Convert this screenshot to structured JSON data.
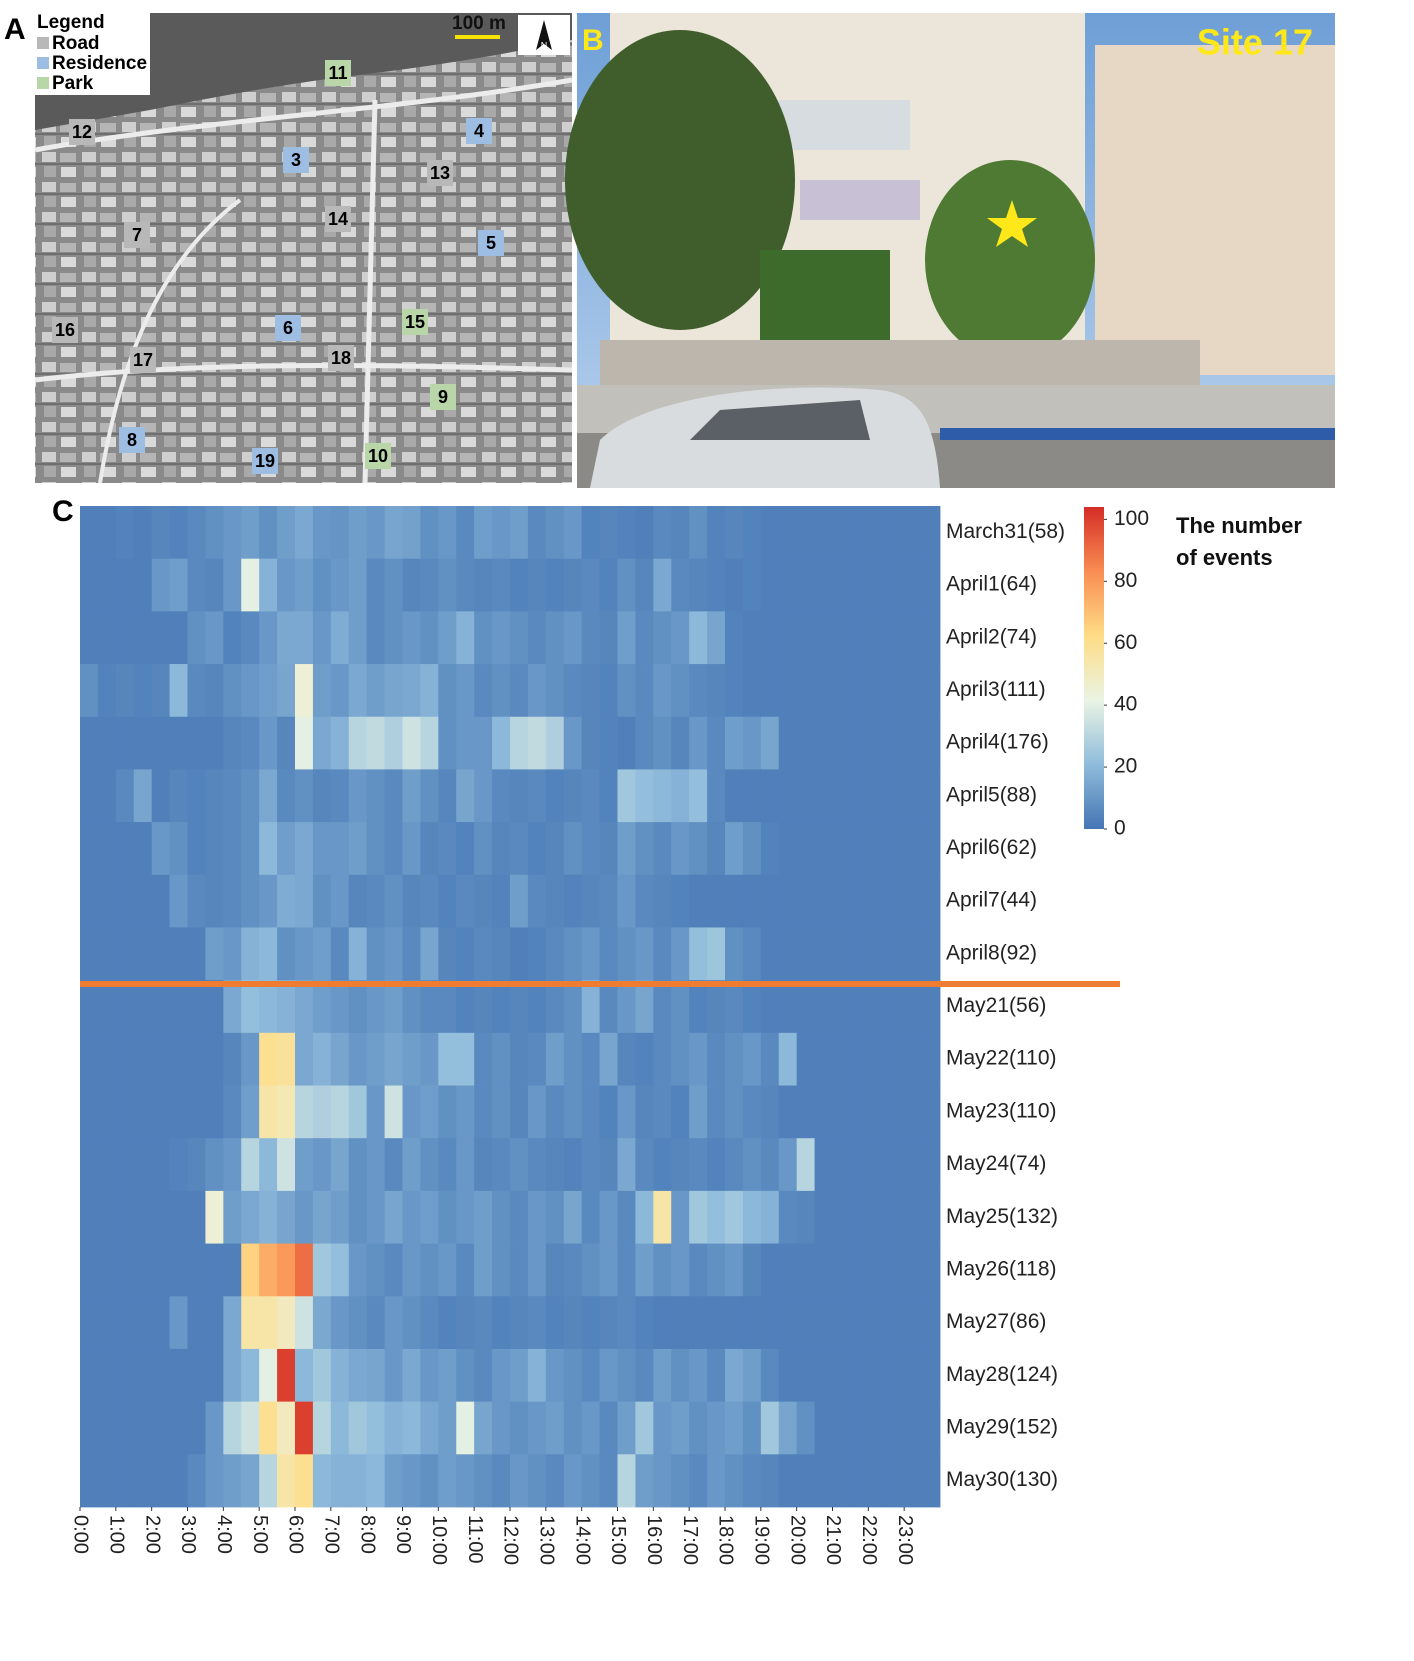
{
  "panel_a": {
    "label": "A",
    "legend_title": "Legend",
    "legend": [
      {
        "name": "Road",
        "color": "#b8b8b8"
      },
      {
        "name": "Residence",
        "color": "#9dbde3"
      },
      {
        "name": "Park",
        "color": "#b9d6a8"
      }
    ],
    "scale": "100 m",
    "north": "N",
    "sites": [
      {
        "label": "11",
        "type": 2
      },
      {
        "label": "12",
        "type": 0
      },
      {
        "label": "4",
        "type": 1
      },
      {
        "label": "3",
        "type": 1
      },
      {
        "label": "13",
        "type": 0
      },
      {
        "label": "14",
        "type": 0
      },
      {
        "label": "7",
        "type": 0
      },
      {
        "label": "5",
        "type": 1
      },
      {
        "label": "15",
        "type": 2
      },
      {
        "label": "16",
        "type": 0
      },
      {
        "label": "6",
        "type": 1
      },
      {
        "label": "17",
        "type": 0
      },
      {
        "label": "18",
        "type": 0
      },
      {
        "label": "9",
        "type": 2
      },
      {
        "label": "8",
        "type": 1
      },
      {
        "label": "10",
        "type": 2
      },
      {
        "label": "19",
        "type": 1
      }
    ]
  },
  "panel_b": {
    "label": "B",
    "site": "Site 17"
  },
  "chart_data": {
    "type": "heatmap",
    "label": "C",
    "colorbar_title": "The number of events",
    "categories": [
      "March31(58)",
      "April1(64)",
      "April2(74)",
      "April3(111)",
      "April4(176)",
      "April5(88)",
      "April6(62)",
      "April7(44)",
      "April8(92)",
      "May21(56)",
      "May22(110)",
      "May23(110)",
      "May24(74)",
      "May25(132)",
      "May26(118)",
      "May27(86)",
      "May28(124)",
      "May29(152)",
      "May30(130)"
    ],
    "bins": [
      0,
      0.5,
      1,
      1.5,
      2,
      2.5,
      3,
      3.5,
      4,
      4.5,
      5,
      5.5,
      6,
      6.5,
      7,
      7.5,
      8,
      8.5,
      9,
      9.5,
      10,
      10.5,
      11,
      11.5,
      12,
      12.5,
      13,
      13.5,
      14,
      14.5,
      15,
      15.5,
      16,
      16.5,
      17,
      17.5,
      18,
      18.5,
      19,
      19.5,
      20,
      20.5,
      21,
      21.5,
      22,
      22.5,
      23,
      23.5,
      24
    ],
    "values": [
      [
        3,
        3,
        4,
        3,
        5,
        4,
        6,
        8,
        10,
        12,
        8,
        12,
        15,
        10,
        9,
        12,
        10,
        14,
        13,
        8,
        10,
        6,
        12,
        10,
        12,
        6,
        8,
        10,
        4,
        5,
        4,
        3,
        6,
        5,
        8,
        4,
        5,
        4,
        3,
        3,
        3,
        3,
        3,
        3,
        3,
        3,
        3,
        3
      ],
      [
        3,
        3,
        3,
        3,
        10,
        12,
        6,
        5,
        10,
        40,
        18,
        10,
        12,
        8,
        10,
        12,
        6,
        8,
        5,
        6,
        8,
        6,
        5,
        6,
        4,
        5,
        4,
        5,
        6,
        4,
        8,
        5,
        15,
        6,
        5,
        4,
        3,
        4,
        3,
        3,
        3,
        3,
        3,
        3,
        3,
        3,
        3,
        3
      ],
      [
        3,
        3,
        3,
        3,
        3,
        3,
        8,
        10,
        4,
        6,
        10,
        15,
        15,
        10,
        16,
        12,
        6,
        8,
        10,
        8,
        12,
        18,
        8,
        10,
        8,
        6,
        8,
        10,
        6,
        5,
        12,
        6,
        8,
        10,
        20,
        14,
        4,
        3,
        3,
        3,
        3,
        3,
        3,
        3,
        3,
        3,
        3,
        3
      ],
      [
        8,
        4,
        5,
        4,
        5,
        20,
        6,
        5,
        8,
        10,
        12,
        14,
        45,
        12,
        10,
        15,
        12,
        14,
        15,
        18,
        8,
        10,
        6,
        8,
        6,
        10,
        8,
        6,
        5,
        4,
        8,
        6,
        10,
        8,
        6,
        5,
        4,
        3,
        3,
        3,
        3,
        3,
        3,
        3,
        3,
        3,
        3,
        3
      ],
      [
        3,
        3,
        3,
        3,
        3,
        3,
        3,
        3,
        5,
        6,
        10,
        5,
        40,
        15,
        18,
        30,
        32,
        28,
        35,
        30,
        8,
        10,
        10,
        20,
        30,
        32,
        28,
        10,
        5,
        4,
        3,
        6,
        8,
        5,
        10,
        6,
        12,
        10,
        14,
        3,
        3,
        3,
        3,
        3,
        3,
        3,
        3,
        3
      ],
      [
        3,
        3,
        6,
        14,
        3,
        5,
        4,
        5,
        6,
        8,
        15,
        6,
        8,
        5,
        6,
        10,
        8,
        6,
        12,
        8,
        5,
        14,
        10,
        6,
        5,
        6,
        4,
        5,
        6,
        4,
        25,
        22,
        20,
        18,
        22,
        6,
        3,
        3,
        3,
        3,
        3,
        3,
        3,
        3,
        3,
        3,
        3,
        3
      ],
      [
        3,
        3,
        3,
        3,
        10,
        8,
        4,
        5,
        6,
        8,
        20,
        12,
        15,
        10,
        10,
        12,
        8,
        6,
        10,
        5,
        6,
        4,
        8,
        5,
        6,
        4,
        5,
        8,
        6,
        5,
        12,
        8,
        6,
        10,
        8,
        5,
        12,
        8,
        4,
        3,
        3,
        3,
        3,
        3,
        3,
        3,
        3,
        3
      ],
      [
        3,
        3,
        3,
        3,
        3,
        10,
        6,
        5,
        6,
        8,
        10,
        16,
        15,
        8,
        10,
        5,
        6,
        8,
        5,
        6,
        4,
        6,
        5,
        4,
        12,
        6,
        5,
        4,
        5,
        6,
        10,
        6,
        5,
        4,
        3,
        3,
        3,
        3,
        3,
        3,
        3,
        3,
        3,
        3,
        3,
        3,
        3,
        3
      ],
      [
        3,
        3,
        3,
        3,
        3,
        3,
        3,
        12,
        10,
        18,
        20,
        8,
        10,
        12,
        6,
        18,
        8,
        10,
        6,
        14,
        5,
        4,
        6,
        5,
        3,
        4,
        6,
        8,
        10,
        6,
        8,
        10,
        6,
        10,
        22,
        24,
        8,
        6,
        3,
        3,
        3,
        3,
        3,
        3,
        3,
        3,
        3,
        3
      ],
      [
        3,
        3,
        3,
        3,
        3,
        3,
        3,
        3,
        15,
        22,
        20,
        18,
        15,
        12,
        10,
        8,
        10,
        12,
        8,
        6,
        6,
        4,
        5,
        4,
        5,
        4,
        6,
        8,
        18,
        6,
        10,
        14,
        6,
        8,
        4,
        5,
        6,
        4,
        3,
        3,
        3,
        3,
        3,
        3,
        3,
        3,
        3,
        3
      ],
      [
        3,
        3,
        3,
        3,
        3,
        3,
        3,
        3,
        5,
        10,
        60,
        58,
        15,
        18,
        14,
        10,
        12,
        14,
        12,
        10,
        22,
        22,
        6,
        8,
        5,
        6,
        12,
        8,
        6,
        14,
        5,
        4,
        6,
        8,
        10,
        6,
        8,
        10,
        6,
        20,
        3,
        3,
        3,
        3,
        3,
        3,
        3,
        3
      ],
      [
        3,
        3,
        3,
        3,
        3,
        3,
        3,
        3,
        6,
        12,
        55,
        52,
        30,
        28,
        30,
        25,
        10,
        35,
        10,
        12,
        8,
        10,
        6,
        8,
        5,
        10,
        6,
        8,
        6,
        4,
        10,
        5,
        6,
        4,
        12,
        6,
        8,
        6,
        5,
        3,
        3,
        3,
        3,
        3,
        3,
        3,
        3,
        3
      ],
      [
        3,
        3,
        3,
        3,
        3,
        4,
        5,
        8,
        10,
        30,
        20,
        35,
        12,
        10,
        14,
        8,
        10,
        6,
        12,
        8,
        6,
        10,
        5,
        6,
        8,
        6,
        5,
        4,
        6,
        5,
        15,
        6,
        4,
        5,
        6,
        4,
        6,
        8,
        6,
        10,
        30,
        3,
        3,
        3,
        3,
        3,
        3,
        3
      ],
      [
        3,
        3,
        3,
        3,
        3,
        3,
        3,
        45,
        12,
        15,
        18,
        14,
        10,
        14,
        12,
        8,
        10,
        14,
        10,
        12,
        8,
        10,
        12,
        8,
        6,
        10,
        8,
        14,
        6,
        10,
        6,
        20,
        55,
        10,
        25,
        22,
        25,
        20,
        18,
        6,
        5,
        3,
        3,
        3,
        3,
        3,
        3,
        3
      ],
      [
        3,
        3,
        3,
        3,
        3,
        3,
        3,
        3,
        3,
        65,
        75,
        80,
        90,
        25,
        22,
        10,
        8,
        6,
        10,
        8,
        10,
        6,
        12,
        8,
        6,
        10,
        5,
        6,
        8,
        10,
        6,
        12,
        8,
        10,
        6,
        8,
        10,
        5,
        3,
        3,
        3,
        3,
        3,
        3,
        3,
        3,
        3,
        3
      ],
      [
        3,
        3,
        3,
        3,
        3,
        10,
        3,
        3,
        15,
        55,
        55,
        50,
        35,
        15,
        10,
        8,
        6,
        10,
        8,
        6,
        4,
        5,
        6,
        4,
        5,
        6,
        4,
        5,
        4,
        5,
        6,
        4,
        3,
        3,
        3,
        3,
        3,
        3,
        3,
        3,
        3,
        3,
        3,
        3,
        3,
        3,
        3,
        3
      ],
      [
        3,
        3,
        3,
        3,
        3,
        3,
        3,
        3,
        15,
        20,
        40,
        100,
        20,
        25,
        18,
        15,
        14,
        10,
        15,
        10,
        12,
        8,
        6,
        10,
        12,
        18,
        10,
        8,
        6,
        10,
        8,
        6,
        12,
        8,
        10,
        6,
        15,
        12,
        6,
        3,
        3,
        3,
        3,
        3,
        3,
        3,
        3,
        3
      ],
      [
        3,
        3,
        3,
        3,
        3,
        3,
        3,
        10,
        30,
        35,
        60,
        50,
        100,
        30,
        20,
        25,
        22,
        18,
        20,
        15,
        12,
        40,
        14,
        10,
        8,
        10,
        12,
        8,
        10,
        6,
        12,
        25,
        10,
        12,
        8,
        10,
        12,
        8,
        25,
        14,
        8,
        3,
        3,
        3,
        3,
        3,
        3,
        3
      ],
      [
        3,
        3,
        3,
        3,
        3,
        3,
        6,
        10,
        12,
        14,
        30,
        55,
        60,
        20,
        18,
        18,
        20,
        12,
        10,
        8,
        12,
        10,
        8,
        6,
        10,
        8,
        6,
        10,
        8,
        6,
        30,
        12,
        10,
        8,
        6,
        10,
        8,
        6,
        5,
        3,
        3,
        3,
        3,
        3,
        3,
        3,
        3,
        3
      ]
    ],
    "xlim": [
      0,
      24
    ],
    "xticks": [
      {
        "value": 0,
        "label": "0:00"
      },
      {
        "value": 1,
        "label": "1:00"
      },
      {
        "value": 2,
        "label": "2:00"
      },
      {
        "value": 3,
        "label": "3:00"
      },
      {
        "value": 4,
        "label": "4:00"
      },
      {
        "value": 5,
        "label": "5:00"
      },
      {
        "value": 6,
        "label": "6:00"
      },
      {
        "value": 7,
        "label": "7:00"
      },
      {
        "value": 8,
        "label": "8:00"
      },
      {
        "value": 9,
        "label": "9:00"
      },
      {
        "value": 10,
        "label": "10:00"
      },
      {
        "value": 11,
        "label": "11:00"
      },
      {
        "value": 12,
        "label": "12:00"
      },
      {
        "value": 13,
        "label": "13:00"
      },
      {
        "value": 14,
        "label": "14:00"
      },
      {
        "value": 15,
        "label": "15:00"
      },
      {
        "value": 16,
        "label": "16:00"
      },
      {
        "value": 17,
        "label": "17:00"
      },
      {
        "value": 18,
        "label": "18:00"
      },
      {
        "value": 19,
        "label": "19:00"
      },
      {
        "value": 20,
        "label": "20:00"
      },
      {
        "value": 21,
        "label": "21:00"
      },
      {
        "value": 22,
        "label": "22:00"
      },
      {
        "value": 23,
        "label": "23:00"
      }
    ],
    "clim": [
      0,
      104
    ],
    "cticks": [
      0,
      20,
      40,
      60,
      80,
      100
    ],
    "colorscale": [
      "#4575b4",
      "#8fbcdb",
      "#eaf4e4",
      "#fedc86",
      "#f98d52",
      "#d42d26"
    ],
    "separator_color": "#ee7d32"
  }
}
